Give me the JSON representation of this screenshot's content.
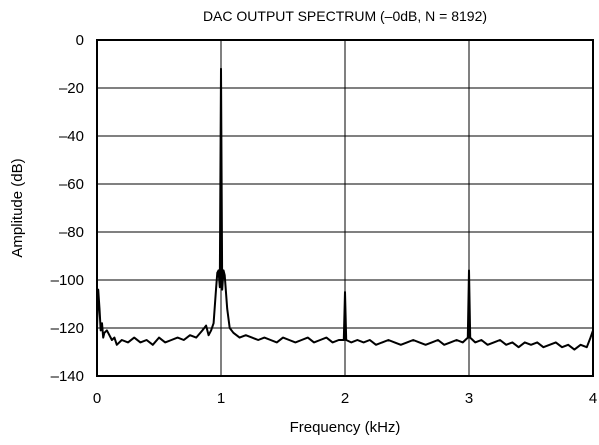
{
  "chart_data": {
    "type": "line",
    "title": "DAC OUTPUT SPECTRUM (–0dB, N = 8192)",
    "xlabel": "Frequency (kHz)",
    "ylabel": "Amplitude (dB)",
    "xlim": [
      0,
      4
    ],
    "ylim": [
      -140,
      0
    ],
    "x_ticks": [
      "0",
      "1",
      "2",
      "3",
      "4"
    ],
    "y_ticks": [
      "0",
      "–20",
      "–40",
      "–60",
      "–80",
      "–100",
      "–120",
      "–140"
    ],
    "grid": true,
    "series": [
      {
        "color": "#000000",
        "points": [
          [
            0.0,
            -120
          ],
          [
            0.01,
            -104
          ],
          [
            0.02,
            -112
          ],
          [
            0.03,
            -121
          ],
          [
            0.04,
            -118
          ],
          [
            0.05,
            -124
          ],
          [
            0.06,
            -122
          ],
          [
            0.08,
            -121
          ],
          [
            0.1,
            -123
          ],
          [
            0.12,
            -125
          ],
          [
            0.14,
            -124
          ],
          [
            0.16,
            -127
          ],
          [
            0.2,
            -125
          ],
          [
            0.25,
            -126
          ],
          [
            0.3,
            -124
          ],
          [
            0.35,
            -126
          ],
          [
            0.4,
            -125
          ],
          [
            0.45,
            -127
          ],
          [
            0.5,
            -124
          ],
          [
            0.55,
            -126
          ],
          [
            0.6,
            -125
          ],
          [
            0.65,
            -124
          ],
          [
            0.7,
            -125
          ],
          [
            0.75,
            -123
          ],
          [
            0.8,
            -124
          ],
          [
            0.85,
            -121
          ],
          [
            0.88,
            -119
          ],
          [
            0.9,
            -123
          ],
          [
            0.92,
            -121
          ],
          [
            0.94,
            -118
          ],
          [
            0.96,
            -104
          ],
          [
            0.97,
            -97
          ],
          [
            0.98,
            -96
          ],
          [
            0.99,
            -103
          ],
          [
            1.0,
            -12
          ],
          [
            1.01,
            -104
          ],
          [
            1.02,
            -96
          ],
          [
            1.03,
            -98
          ],
          [
            1.05,
            -112
          ],
          [
            1.07,
            -120
          ],
          [
            1.1,
            -122
          ],
          [
            1.15,
            -124
          ],
          [
            1.2,
            -123
          ],
          [
            1.25,
            -124
          ],
          [
            1.3,
            -125
          ],
          [
            1.35,
            -124
          ],
          [
            1.4,
            -125
          ],
          [
            1.45,
            -126
          ],
          [
            1.5,
            -124
          ],
          [
            1.55,
            -125
          ],
          [
            1.6,
            -126
          ],
          [
            1.65,
            -125
          ],
          [
            1.7,
            -124
          ],
          [
            1.75,
            -126
          ],
          [
            1.8,
            -125
          ],
          [
            1.85,
            -124
          ],
          [
            1.9,
            -126
          ],
          [
            1.95,
            -125
          ],
          [
            1.99,
            -125
          ],
          [
            2.0,
            -105
          ],
          [
            2.01,
            -125
          ],
          [
            2.05,
            -126
          ],
          [
            2.1,
            -125
          ],
          [
            2.15,
            -126
          ],
          [
            2.2,
            -125
          ],
          [
            2.25,
            -127
          ],
          [
            2.3,
            -126
          ],
          [
            2.35,
            -125
          ],
          [
            2.4,
            -126
          ],
          [
            2.45,
            -127
          ],
          [
            2.5,
            -126
          ],
          [
            2.55,
            -125
          ],
          [
            2.6,
            -126
          ],
          [
            2.65,
            -127
          ],
          [
            2.7,
            -126
          ],
          [
            2.75,
            -125
          ],
          [
            2.8,
            -127
          ],
          [
            2.85,
            -126
          ],
          [
            2.9,
            -125
          ],
          [
            2.95,
            -126
          ],
          [
            2.99,
            -124
          ],
          [
            3.0,
            -96
          ],
          [
            3.01,
            -124
          ],
          [
            3.05,
            -126
          ],
          [
            3.1,
            -125
          ],
          [
            3.15,
            -127
          ],
          [
            3.2,
            -126
          ],
          [
            3.25,
            -125
          ],
          [
            3.3,
            -127
          ],
          [
            3.35,
            -126
          ],
          [
            3.4,
            -128
          ],
          [
            3.45,
            -126
          ],
          [
            3.5,
            -127
          ],
          [
            3.55,
            -126
          ],
          [
            3.6,
            -128
          ],
          [
            3.65,
            -127
          ],
          [
            3.7,
            -126
          ],
          [
            3.75,
            -128
          ],
          [
            3.8,
            -127
          ],
          [
            3.85,
            -129
          ],
          [
            3.9,
            -127
          ],
          [
            3.95,
            -128
          ],
          [
            3.98,
            -124
          ],
          [
            4.0,
            -121
          ]
        ]
      }
    ]
  }
}
